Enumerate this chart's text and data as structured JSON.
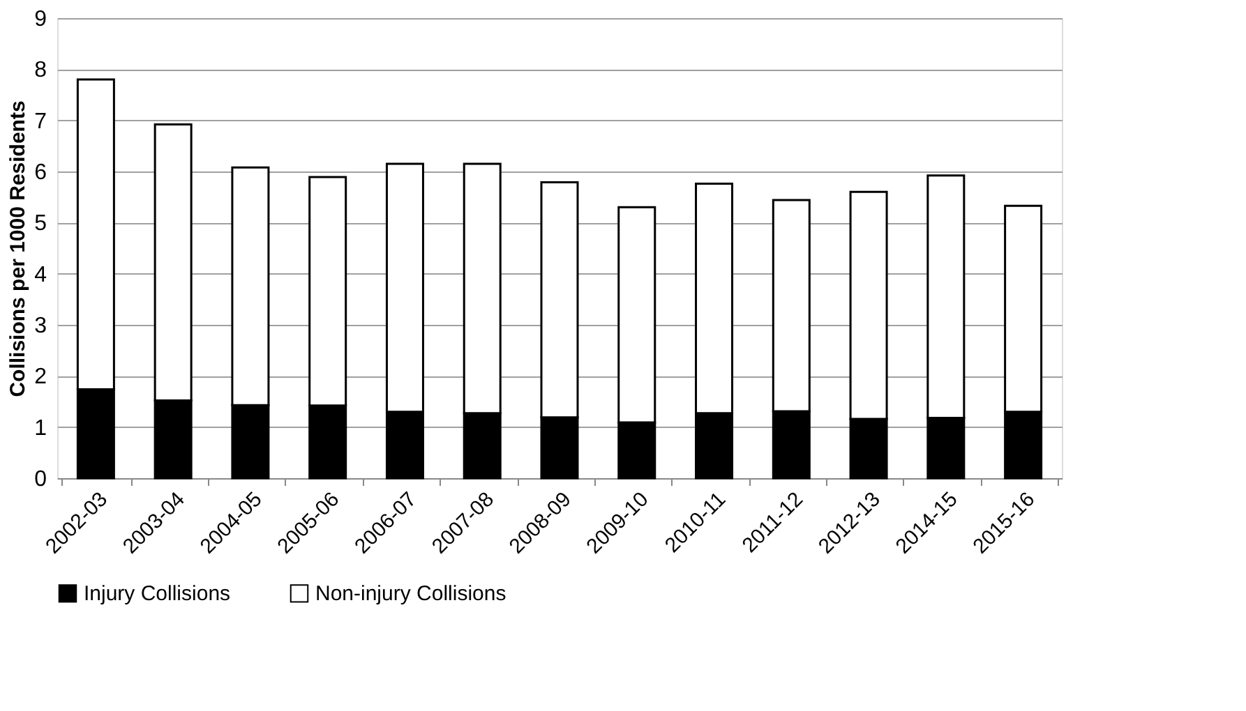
{
  "chart_data": {
    "type": "bar",
    "stacked": true,
    "ylabel": "Collisions per 1000 Residents",
    "categories": [
      "2002-03",
      "2003-04",
      "2004-05",
      "2005-06",
      "2006-07",
      "2007-08",
      "2008-09",
      "2009-10",
      "2010-11",
      "2011-12",
      "2012-13",
      "2014-15",
      "2015-16"
    ],
    "series": [
      {
        "name": "Injury Collisions",
        "color": "#000000",
        "values": [
          1.74,
          1.52,
          1.43,
          1.42,
          1.3,
          1.27,
          1.19,
          1.09,
          1.27,
          1.31,
          1.16,
          1.18,
          1.3
        ]
      },
      {
        "name": "Non-injury Collisions",
        "color": "#ffffff",
        "values": [
          6.06,
          5.4,
          4.65,
          4.47,
          4.85,
          4.88,
          4.6,
          4.21,
          4.49,
          4.13,
          4.44,
          4.74,
          4.03
        ]
      }
    ],
    "ylim": [
      0,
      9
    ],
    "yticks": [
      0,
      1,
      2,
      3,
      4,
      5,
      6,
      7,
      8,
      9
    ],
    "grid": "y",
    "legend": "bottom"
  }
}
